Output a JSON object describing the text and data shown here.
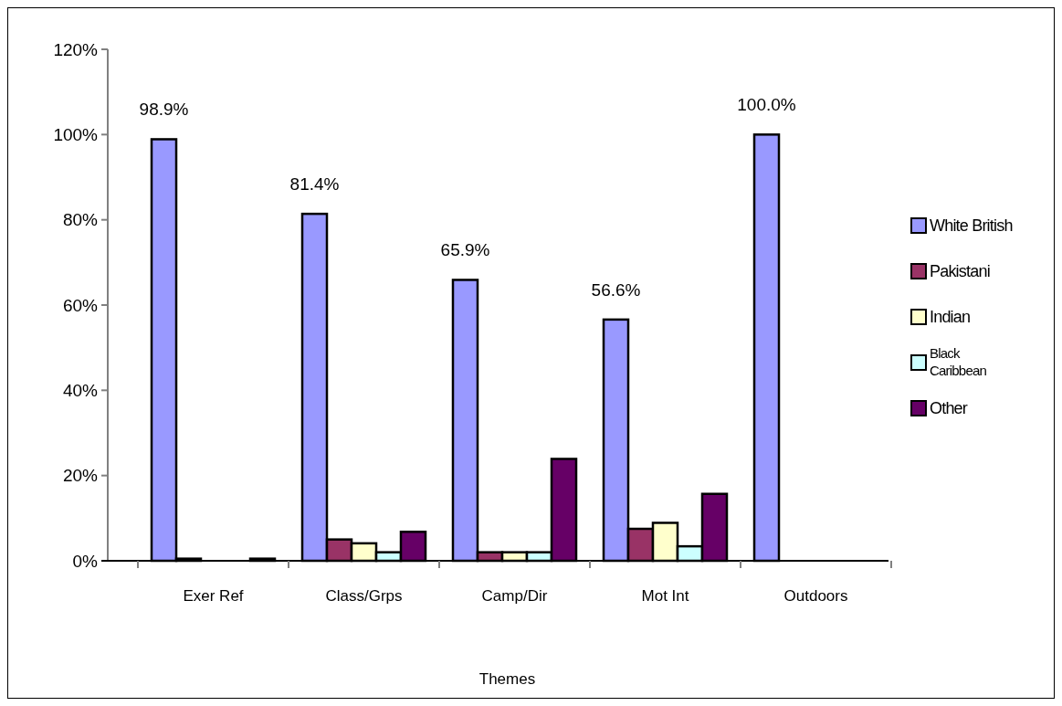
{
  "chart_data": {
    "type": "bar",
    "xlabel": "Themes",
    "categories": [
      "Exer Ref",
      "Class/Grps",
      "Camp/Dir",
      "Mot Int",
      "Outdoors"
    ],
    "series": [
      {
        "name": "White British",
        "color": "#9999ff",
        "values": [
          98.9,
          81.4,
          65.9,
          56.6,
          100.0
        ],
        "value_labels": [
          "98.9%",
          "81.4%",
          "65.9%",
          "56.6%",
          "100.0%"
        ]
      },
      {
        "name": "Pakistani",
        "color": "#993366",
        "values": [
          0.5,
          5.0,
          2.0,
          7.5,
          null
        ]
      },
      {
        "name": "Indian",
        "color": "#ffffcc",
        "values": [
          null,
          4.1,
          2.0,
          8.9,
          null
        ]
      },
      {
        "name": "Black Caribbean",
        "color": "#ccffff",
        "values": [
          null,
          2.0,
          2.0,
          3.4,
          null
        ]
      },
      {
        "name": "Other",
        "color": "#660066",
        "values": [
          0.5,
          6.8,
          23.9,
          15.7,
          null
        ]
      }
    ],
    "ylim": [
      0,
      120
    ],
    "yticks": [
      {
        "value": 0,
        "label": "0%"
      },
      {
        "value": 20,
        "label": "20%"
      },
      {
        "value": 40,
        "label": "40%"
      },
      {
        "value": 60,
        "label": "60%"
      },
      {
        "value": 80,
        "label": "80%"
      },
      {
        "value": 100,
        "label": "100%"
      },
      {
        "value": 120,
        "label": "120%"
      }
    ],
    "grid": false,
    "legend": "right"
  }
}
